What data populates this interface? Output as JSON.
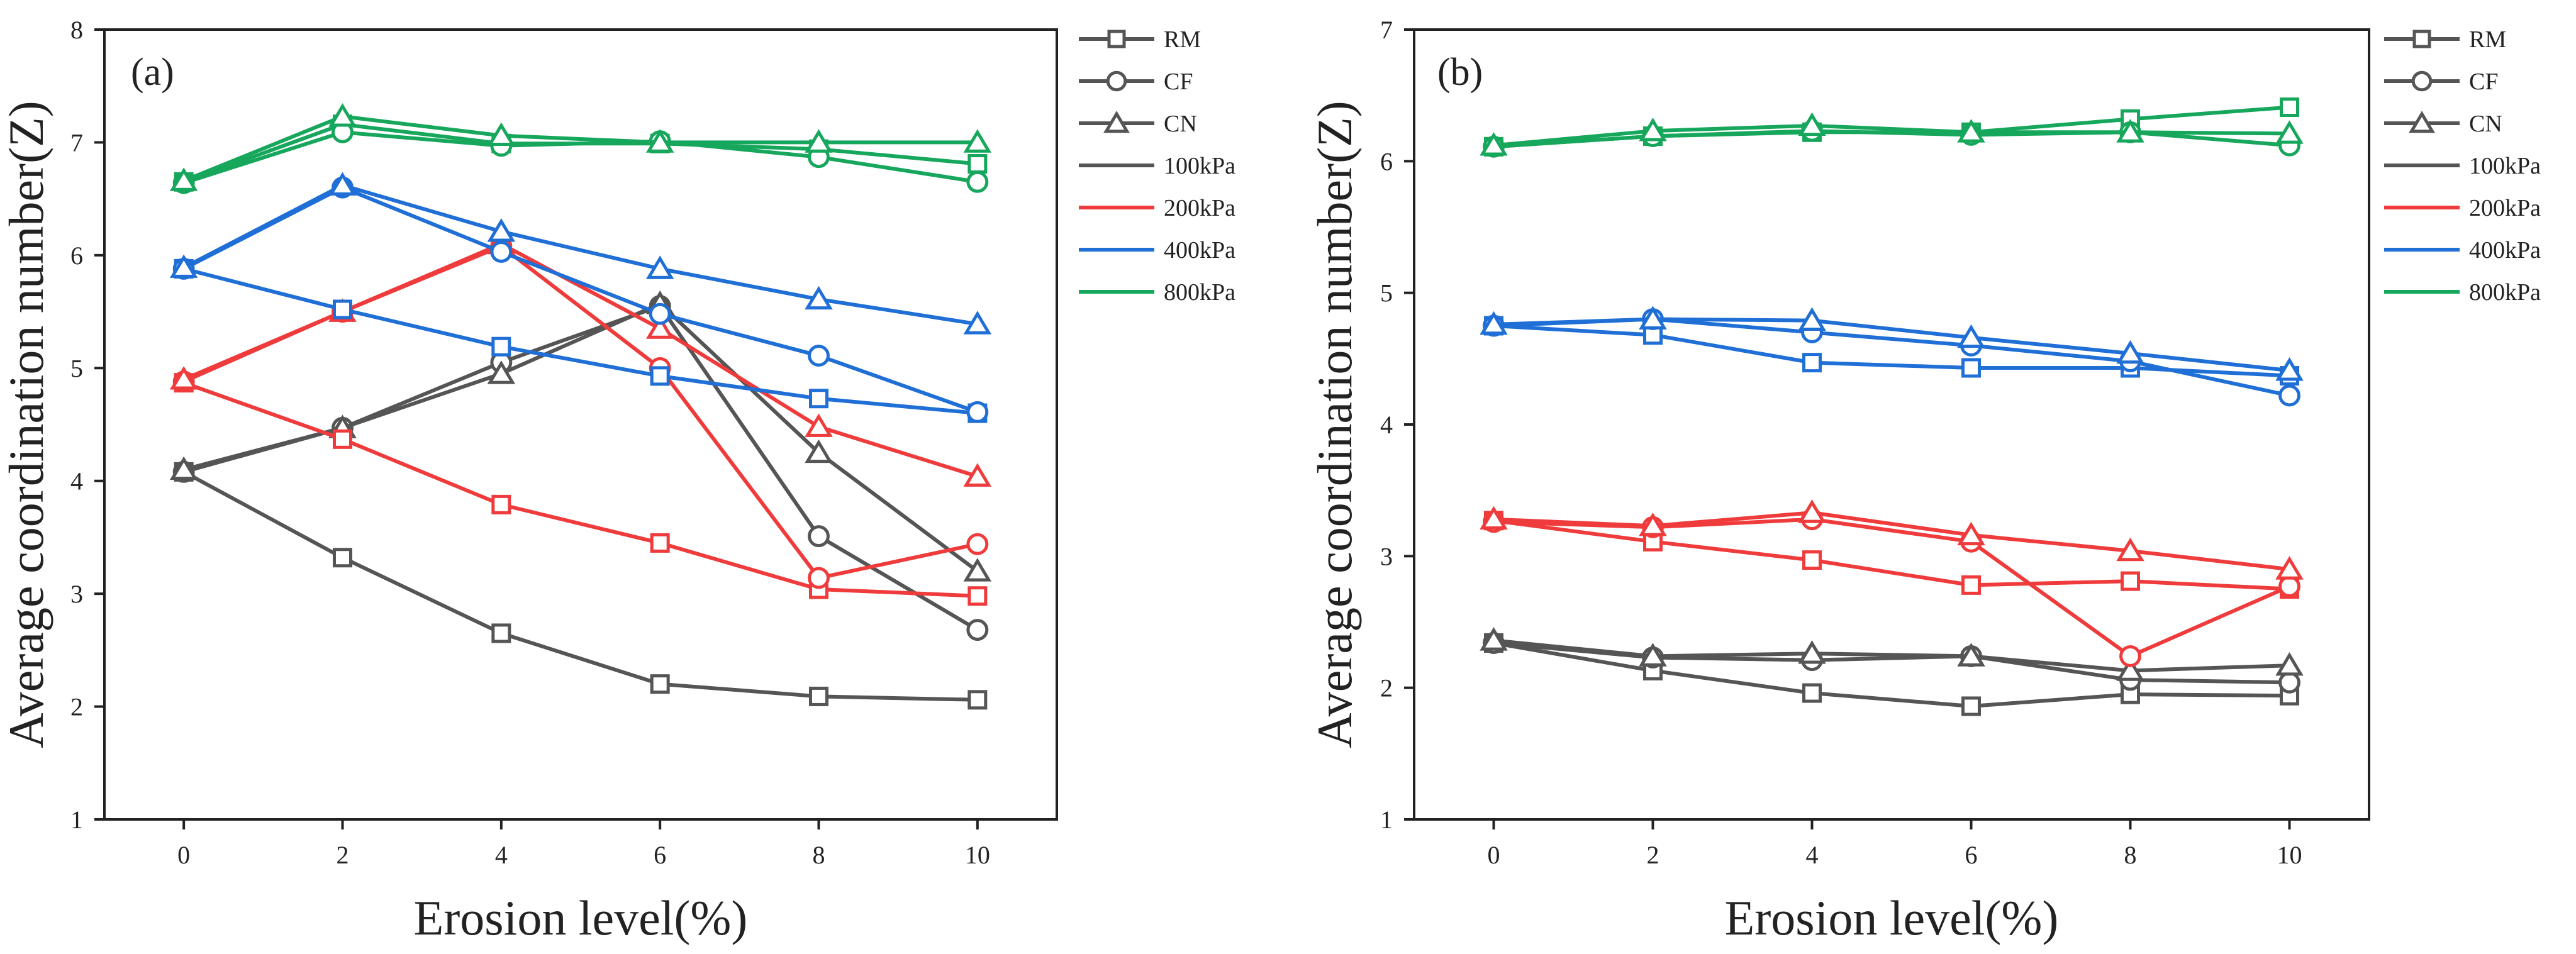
{
  "chart_data": [
    {
      "type": "line",
      "panel_label": "(a)",
      "xlabel": "Erosion level(%)",
      "ylabel": "Average coordination number(Z)",
      "x": [
        0,
        2,
        4,
        6,
        8,
        10
      ],
      "xlim": [
        -1,
        11
      ],
      "ylim": [
        1,
        8
      ],
      "xticks": [
        0,
        2,
        4,
        6,
        8,
        10
      ],
      "yticks": [
        1,
        2,
        3,
        4,
        5,
        6,
        7,
        8
      ],
      "legend_position": "right",
      "legend": {
        "markers": [
          {
            "label": "RM",
            "marker": "square"
          },
          {
            "label": "CF",
            "marker": "circle"
          },
          {
            "label": "CN",
            "marker": "triangle"
          }
        ],
        "pressures": [
          {
            "label": "100kPa",
            "color": "#555555"
          },
          {
            "label": "200kPa",
            "color": "#ef3b3b"
          },
          {
            "label": "400kPa",
            "color": "#1f6fd6"
          },
          {
            "label": "800kPa",
            "color": "#16a75c"
          }
        ]
      },
      "series": [
        {
          "name": "RM 100kPa",
          "method": "RM",
          "pressure": "100kPa",
          "marker": "square",
          "color": "#555555",
          "values": [
            4.08,
            3.32,
            2.65,
            2.2,
            2.09,
            2.06
          ]
        },
        {
          "name": "CF 100kPa",
          "method": "CF",
          "pressure": "100kPa",
          "marker": "circle",
          "color": "#555555",
          "values": [
            4.08,
            4.47,
            5.05,
            5.55,
            3.51,
            2.68
          ]
        },
        {
          "name": "CN 100kPa",
          "method": "CN",
          "pressure": "100kPa",
          "marker": "triangle",
          "color": "#555555",
          "values": [
            4.1,
            4.47,
            4.95,
            5.57,
            4.25,
            3.2
          ]
        },
        {
          "name": "RM 200kPa",
          "method": "RM",
          "pressure": "200kPa",
          "marker": "square",
          "color": "#ef3b3b",
          "values": [
            4.87,
            4.37,
            3.79,
            3.45,
            3.04,
            2.98
          ]
        },
        {
          "name": "CF 200kPa",
          "method": "CF",
          "pressure": "200kPa",
          "marker": "circle",
          "color": "#ef3b3b",
          "values": [
            4.88,
            5.5,
            6.08,
            5.0,
            3.14,
            3.44
          ]
        },
        {
          "name": "CN 200kPa",
          "method": "CN",
          "pressure": "200kPa",
          "marker": "triangle",
          "color": "#ef3b3b",
          "values": [
            4.9,
            5.5,
            6.1,
            5.35,
            4.48,
            4.04
          ]
        },
        {
          "name": "RM 400kPa",
          "method": "RM",
          "pressure": "400kPa",
          "marker": "square",
          "color": "#1f6fd6",
          "values": [
            5.88,
            5.52,
            5.19,
            4.93,
            4.73,
            4.6
          ]
        },
        {
          "name": "CF 400kPa",
          "method": "CF",
          "pressure": "400kPa",
          "marker": "circle",
          "color": "#1f6fd6",
          "values": [
            5.88,
            6.6,
            6.03,
            5.48,
            5.11,
            4.61
          ]
        },
        {
          "name": "CN 400kPa",
          "method": "CN",
          "pressure": "400kPa",
          "marker": "triangle",
          "color": "#1f6fd6",
          "values": [
            5.89,
            6.62,
            6.21,
            5.88,
            5.61,
            5.39
          ]
        },
        {
          "name": "RM 800kPa",
          "method": "RM",
          "pressure": "800kPa",
          "marker": "square",
          "color": "#16a75c",
          "values": [
            6.65,
            7.16,
            6.99,
            6.99,
            6.94,
            6.81
          ]
        },
        {
          "name": "CF 800kPa",
          "method": "CF",
          "pressure": "800kPa",
          "marker": "circle",
          "color": "#16a75c",
          "values": [
            6.64,
            7.09,
            6.97,
            7.01,
            6.87,
            6.65
          ]
        },
        {
          "name": "CN 800kPa",
          "method": "CN",
          "pressure": "800kPa",
          "marker": "triangle",
          "color": "#16a75c",
          "values": [
            6.66,
            7.23,
            7.06,
            7.0,
            7.0,
            7.0
          ]
        }
      ]
    },
    {
      "type": "line",
      "panel_label": "(b)",
      "xlabel": "Erosion level(%)",
      "ylabel": "Average coordination number(Z)",
      "x": [
        0,
        2,
        4,
        6,
        8,
        10
      ],
      "xlim": [
        -1,
        11
      ],
      "ylim": [
        1,
        7
      ],
      "xticks": [
        0,
        2,
        4,
        6,
        8,
        10
      ],
      "yticks": [
        1,
        2,
        3,
        4,
        5,
        6,
        7
      ],
      "legend_position": "right",
      "legend": {
        "markers": [
          {
            "label": "RM",
            "marker": "square"
          },
          {
            "label": "CF",
            "marker": "circle"
          },
          {
            "label": "CN",
            "marker": "triangle"
          }
        ],
        "pressures": [
          {
            "label": "100kPa",
            "color": "#555555"
          },
          {
            "label": "200kPa",
            "color": "#ef3b3b"
          },
          {
            "label": "400kPa",
            "color": "#1f6fd6"
          },
          {
            "label": "800kPa",
            "color": "#16a75c"
          }
        ]
      },
      "series": [
        {
          "name": "RM 100kPa",
          "method": "RM",
          "pressure": "100kPa",
          "marker": "square",
          "color": "#555555",
          "values": [
            2.34,
            2.13,
            1.96,
            1.86,
            1.95,
            1.94
          ]
        },
        {
          "name": "CF 100kPa",
          "method": "CF",
          "pressure": "100kPa",
          "marker": "circle",
          "color": "#555555",
          "values": [
            2.34,
            2.23,
            2.21,
            2.24,
            2.06,
            2.04
          ]
        },
        {
          "name": "CN 100kPa",
          "method": "CN",
          "pressure": "100kPa",
          "marker": "triangle",
          "color": "#555555",
          "values": [
            2.36,
            2.24,
            2.26,
            2.24,
            2.13,
            2.17
          ]
        },
        {
          "name": "RM 200kPa",
          "method": "RM",
          "pressure": "200kPa",
          "marker": "square",
          "color": "#ef3b3b",
          "values": [
            3.27,
            3.11,
            2.97,
            2.78,
            2.81,
            2.75
          ]
        },
        {
          "name": "CF 200kPa",
          "method": "CF",
          "pressure": "200kPa",
          "marker": "circle",
          "color": "#ef3b3b",
          "values": [
            3.26,
            3.22,
            3.28,
            3.11,
            2.24,
            2.77
          ]
        },
        {
          "name": "CN 200kPa",
          "method": "CN",
          "pressure": "200kPa",
          "marker": "triangle",
          "color": "#ef3b3b",
          "values": [
            3.28,
            3.23,
            3.33,
            3.16,
            3.04,
            2.9
          ]
        },
        {
          "name": "RM 400kPa",
          "method": "RM",
          "pressure": "400kPa",
          "marker": "square",
          "color": "#1f6fd6",
          "values": [
            4.75,
            4.68,
            4.47,
            4.43,
            4.43,
            4.37
          ]
        },
        {
          "name": "CF 400kPa",
          "method": "CF",
          "pressure": "400kPa",
          "marker": "circle",
          "color": "#1f6fd6",
          "values": [
            4.75,
            4.8,
            4.7,
            4.6,
            4.48,
            4.22
          ]
        },
        {
          "name": "CN 400kPa",
          "method": "CN",
          "pressure": "400kPa",
          "marker": "triangle",
          "color": "#1f6fd6",
          "values": [
            4.76,
            4.8,
            4.79,
            4.66,
            4.54,
            4.41
          ]
        },
        {
          "name": "RM 800kPa",
          "method": "RM",
          "pressure": "800kPa",
          "marker": "square",
          "color": "#16a75c",
          "values": [
            6.11,
            6.19,
            6.22,
            6.22,
            6.32,
            6.41
          ]
        },
        {
          "name": "CF 800kPa",
          "method": "CF",
          "pressure": "800kPa",
          "marker": "circle",
          "color": "#16a75c",
          "values": [
            6.11,
            6.19,
            6.23,
            6.2,
            6.22,
            6.12
          ]
        },
        {
          "name": "CN 800kPa",
          "method": "CN",
          "pressure": "800kPa",
          "marker": "triangle",
          "color": "#16a75c",
          "values": [
            6.12,
            6.23,
            6.27,
            6.22,
            6.22,
            6.21
          ]
        }
      ]
    }
  ]
}
